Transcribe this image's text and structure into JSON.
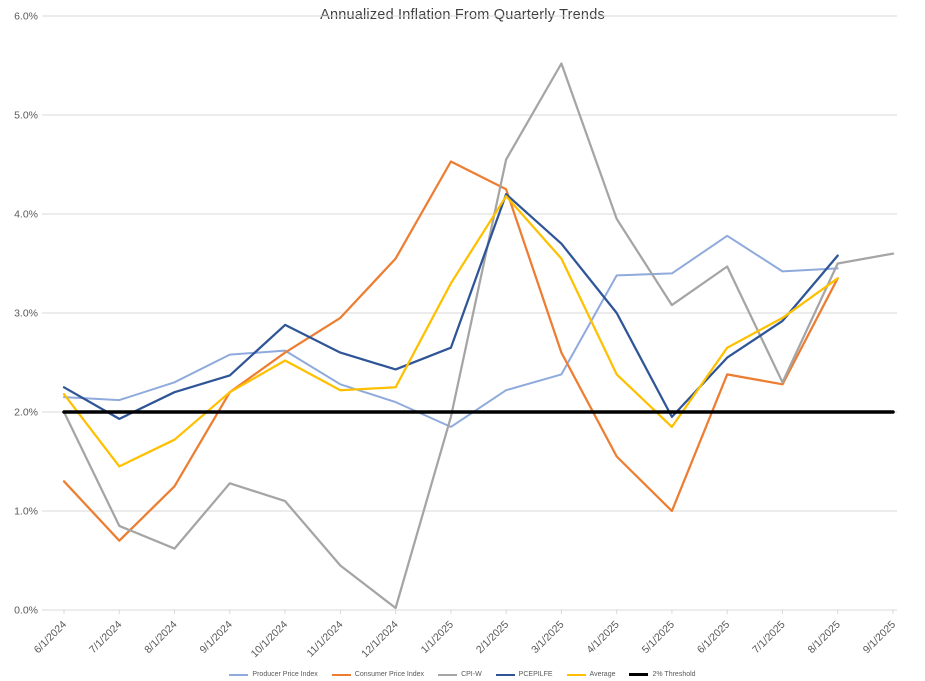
{
  "chart_data": {
    "type": "line",
    "title": "Annualized Inflation From Quarterly Trends",
    "categories": [
      "6/1/2024",
      "7/1/2024",
      "8/1/2024",
      "9/1/2024",
      "10/1/2024",
      "11/1/2024",
      "12/1/2024",
      "1/1/2025",
      "2/1/2025",
      "3/1/2025",
      "4/1/2025",
      "5/1/2025",
      "6/1/2025",
      "7/1/2025",
      "8/1/2025",
      "9/1/2025"
    ],
    "series": [
      {
        "name": "Producer Price Index",
        "color": "#8FAADC",
        "width": 2,
        "values": [
          2.15,
          2.12,
          2.3,
          2.58,
          2.62,
          2.28,
          2.1,
          1.85,
          2.22,
          2.38,
          3.38,
          3.4,
          3.78,
          3.42,
          3.45,
          null
        ]
      },
      {
        "name": "Consumer Price Index",
        "color": "#ED7D31",
        "width": 2.25,
        "values": [
          1.3,
          0.7,
          1.25,
          2.2,
          2.6,
          2.95,
          3.55,
          4.53,
          4.25,
          2.6,
          1.55,
          1.0,
          2.38,
          2.28,
          3.35,
          null
        ]
      },
      {
        "name": "CPI-W",
        "color": "#A5A5A5",
        "width": 2.25,
        "values": [
          2.0,
          0.85,
          0.62,
          1.28,
          1.1,
          0.45,
          0.02,
          1.95,
          4.55,
          5.52,
          3.95,
          3.08,
          3.47,
          2.3,
          3.5,
          3.6
        ]
      },
      {
        "name": "PCEPILFE",
        "color": "#2F5597",
        "width": 2.25,
        "values": [
          2.25,
          1.93,
          2.2,
          2.37,
          2.88,
          2.6,
          2.43,
          2.65,
          4.2,
          3.7,
          3.0,
          1.95,
          2.55,
          2.92,
          3.58,
          null
        ]
      },
      {
        "name": "Average",
        "color": "#FFC000",
        "width": 2.25,
        "values": [
          2.18,
          1.45,
          1.72,
          2.2,
          2.52,
          2.22,
          2.25,
          3.3,
          4.18,
          3.55,
          2.38,
          1.85,
          2.65,
          2.95,
          3.35,
          null
        ]
      },
      {
        "name": "2% Threshold",
        "color": "#000000",
        "width": 3.5,
        "values": [
          2.0,
          2.0,
          2.0,
          2.0,
          2.0,
          2.0,
          2.0,
          2.0,
          2.0,
          2.0,
          2.0,
          2.0,
          2.0,
          2.0,
          2.0,
          2.0
        ]
      }
    ],
    "ylim": [
      0,
      6
    ],
    "ytick_values": [
      0,
      1,
      2,
      3,
      4,
      5,
      6
    ],
    "ytick_labels": [
      "0.0%",
      "1.0%",
      "2.0%",
      "3.0%",
      "4.0%",
      "5.0%",
      "6.0%"
    ],
    "grid": true,
    "gridline_color": "#d9d9d9",
    "axis_label_color": "#595959",
    "legend_position": "bottom"
  }
}
